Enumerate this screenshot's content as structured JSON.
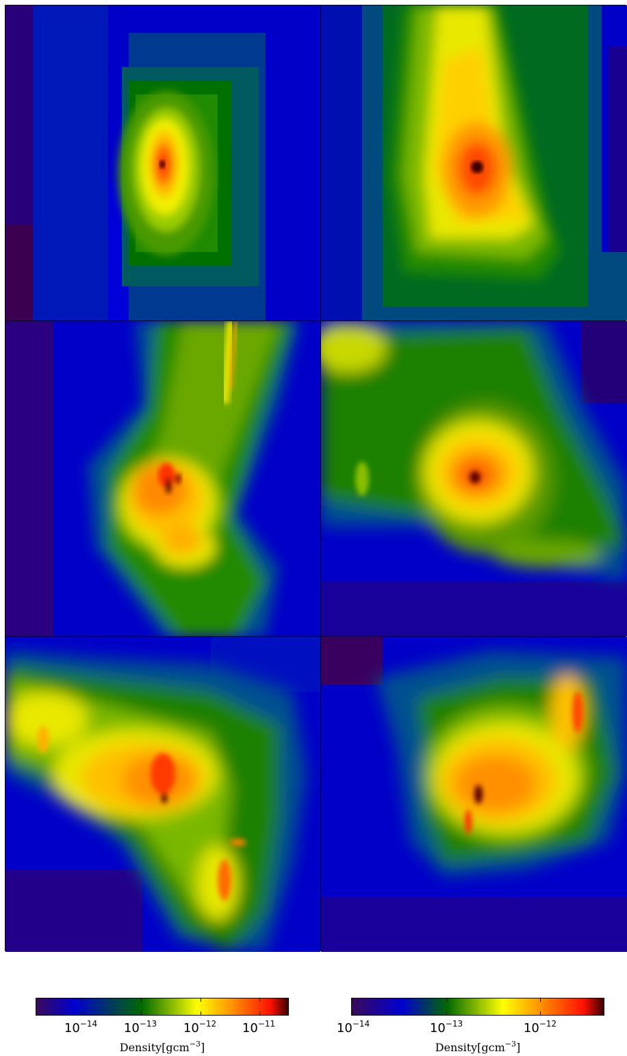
{
  "panels": [
    {
      "name": "panel-top-left"
    },
    {
      "name": "panel-top-right"
    },
    {
      "name": "panel-middle-left"
    },
    {
      "name": "panel-middle-right"
    },
    {
      "name": "panel-bottom-left"
    },
    {
      "name": "panel-bottom-right"
    }
  ],
  "colorbars": [
    {
      "label_text": "Density[gcm",
      "label_exp": "−3",
      "label_close": "]",
      "scale": "log",
      "range": [
        2e-15,
        3e-11
      ],
      "ticks": [
        {
          "base": "10",
          "exp": "−14",
          "value": 1e-14
        },
        {
          "base": "10",
          "exp": "−13",
          "value": 1e-13
        },
        {
          "base": "10",
          "exp": "−12",
          "value": 1e-12
        },
        {
          "base": "10",
          "exp": "−11",
          "value": 1e-11
        }
      ]
    },
    {
      "label_text": "Density[gcm",
      "label_exp": "−3",
      "label_close": "]",
      "scale": "log",
      "range": [
        1e-14,
        5e-12
      ],
      "ticks": [
        {
          "base": "10",
          "exp": "−14",
          "value": 1e-14
        },
        {
          "base": "10",
          "exp": "−13",
          "value": 1e-13
        },
        {
          "base": "10",
          "exp": "−12",
          "value": 1e-12
        }
      ]
    }
  ],
  "colormap": [
    "#3a0a5a",
    "#0000d0",
    "#006a00",
    "#ffff00",
    "#ff8000",
    "#ff0000",
    "#3a0000"
  ]
}
